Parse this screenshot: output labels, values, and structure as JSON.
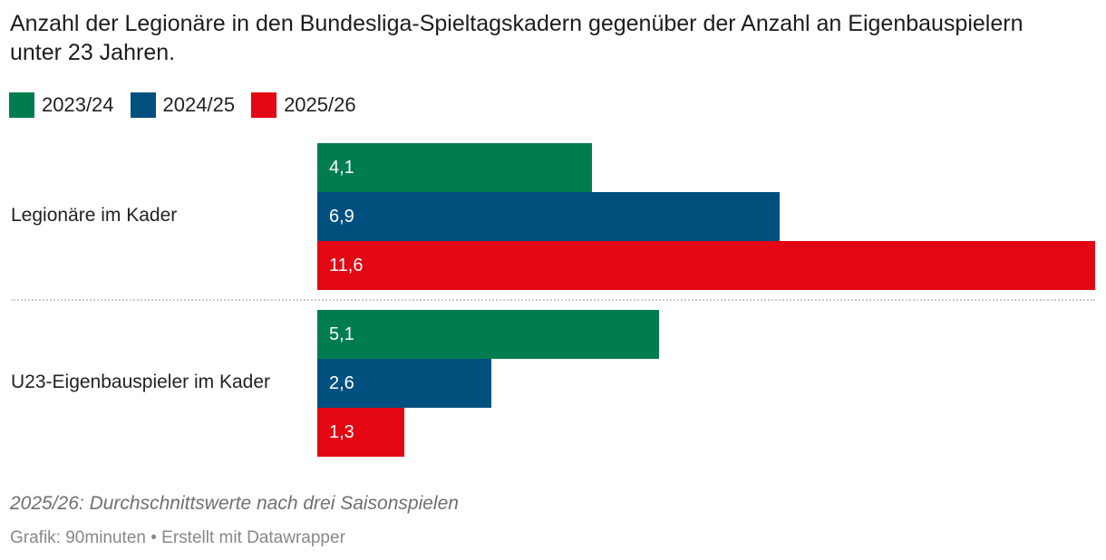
{
  "title": "Anzahl der Legionäre in den Bundesliga-Spieltagskadern gegenüber der Anzahl an Eigenbauspielern unter 23 Jahren.",
  "notes": "2025/26: Durchschnittswerte nach drei Saisonspielen",
  "credit": "Grafik: 90minuten • Erstellt mit Datawrapper",
  "chart_data": {
    "type": "bar",
    "orientation": "horizontal",
    "categories": [
      "Legionäre im Kader",
      "U23-Eigenbauspieler im Kader"
    ],
    "series": [
      {
        "name": "2023/24",
        "color": "#007d4f",
        "values": [
          4.1,
          5.1
        ],
        "labels": [
          "4,1",
          "5,1"
        ]
      },
      {
        "name": "2024/25",
        "color": "#00507f",
        "values": [
          6.9,
          2.6
        ],
        "labels": [
          "6,9",
          "2,6"
        ]
      },
      {
        "name": "2025/26",
        "color": "#e30613",
        "values": [
          11.6,
          1.3
        ],
        "labels": [
          "11,6",
          "1,3"
        ]
      }
    ],
    "xlim": [
      0,
      11.6
    ],
    "legend": "top-left",
    "grid": false
  }
}
